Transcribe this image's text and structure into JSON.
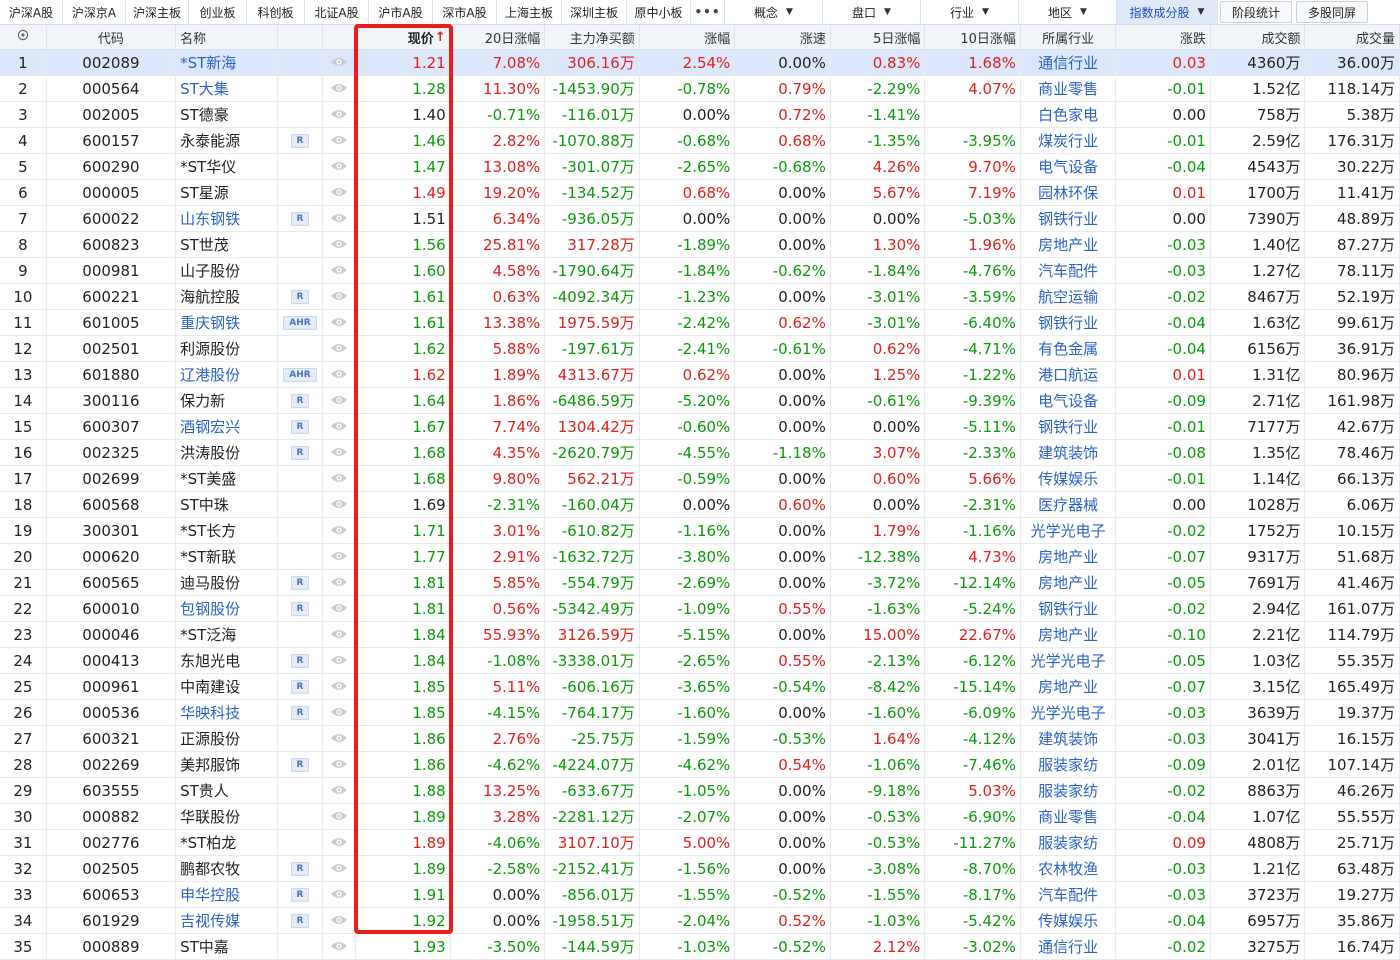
{
  "tabs": [
    {
      "label": "沪深A股",
      "w": 63
    },
    {
      "label": "沪深京A",
      "w": 63
    },
    {
      "label": "沪深主板",
      "w": 63
    },
    {
      "label": "创业板",
      "w": 58
    },
    {
      "label": "科创板",
      "w": 58
    },
    {
      "label": "北证A股",
      "w": 64
    },
    {
      "label": "沪市A股",
      "w": 64
    },
    {
      "label": "深市A股",
      "w": 64
    },
    {
      "label": "上海主板",
      "w": 65
    },
    {
      "label": "深圳主板",
      "w": 65
    },
    {
      "label": "原中小板",
      "w": 64
    }
  ],
  "more_label": "•••",
  "dropdowns": [
    {
      "label": "概念",
      "w": 98
    },
    {
      "label": "盘口",
      "w": 98
    },
    {
      "label": "行业",
      "w": 98
    },
    {
      "label": "地区",
      "w": 98
    },
    {
      "label": "指数成分股",
      "w": 101,
      "active": true
    }
  ],
  "buttons": [
    {
      "label": "阶段统计",
      "w": 72
    },
    {
      "label": "多股同屏",
      "w": 72
    }
  ],
  "columns": [
    {
      "label": "",
      "w": 47,
      "key": "idx"
    },
    {
      "label": "代码",
      "w": 130,
      "key": "code"
    },
    {
      "label": "名称",
      "w": 102,
      "key": "name"
    },
    {
      "label": "",
      "w": 46,
      "key": "badge"
    },
    {
      "label": "",
      "w": 33,
      "key": "watch"
    },
    {
      "label": "现价",
      "w": 95,
      "key": "price"
    },
    {
      "label": "20日涨幅",
      "w": 95,
      "key": "chg20"
    },
    {
      "label": "主力净买额",
      "w": 95,
      "key": "net"
    },
    {
      "label": "涨幅",
      "w": 96,
      "key": "pct"
    },
    {
      "label": "涨速",
      "w": 96,
      "key": "speed"
    },
    {
      "label": "5日涨幅",
      "w": 95,
      "key": "chg5"
    },
    {
      "label": "10日涨幅",
      "w": 96,
      "key": "chg10"
    },
    {
      "label": "所属行业",
      "w": 96,
      "key": "ind"
    },
    {
      "label": "涨跌",
      "w": 95,
      "key": "diff"
    },
    {
      "label": "成交额",
      "w": 95,
      "key": "amt"
    },
    {
      "label": "成交量",
      "w": 95,
      "key": "vol"
    }
  ],
  "sort_indicator": "↑",
  "colors": {
    "up": "#e0201c",
    "down": "#0a9a0a",
    "flat": "#222222",
    "link": "#2a62c9",
    "highlight": "#ee1b1b"
  },
  "rows": [
    {
      "idx": "1",
      "code": "002089",
      "name": "*ST新海",
      "nl": 1,
      "badge": "",
      "price": "1.21",
      "pc": "red",
      "chg20": "7.08%",
      "net": "306.16万",
      "pct": "2.54%",
      "speed": "0.00%",
      "chg5": "0.83%",
      "chg10": "1.68%",
      "ind": "通信行业",
      "diff": "0.03",
      "amt": "4360万",
      "vol": "36.00万"
    },
    {
      "idx": "2",
      "code": "000564",
      "name": "ST大集",
      "nl": 1,
      "badge": "",
      "price": "1.28",
      "pc": "green",
      "chg20": "11.30%",
      "net": "-1453.90万",
      "pct": "-0.78%",
      "speed": "0.79%",
      "chg5": "-2.29%",
      "chg10": "4.07%",
      "ind": "商业零售",
      "diff": "-0.01",
      "amt": "1.52亿",
      "vol": "118.14万"
    },
    {
      "idx": "3",
      "code": "002005",
      "name": "ST德豪",
      "nl": 0,
      "badge": "",
      "price": "1.40",
      "pc": "black",
      "chg20": "-0.71%",
      "net": "-116.01万",
      "pct": "0.00%",
      "speed": "0.72%",
      "chg5": "-1.41%",
      "chg10": "",
      "ind": "白色家电",
      "diff": "0.00",
      "amt": "758万",
      "vol": "5.38万"
    },
    {
      "idx": "4",
      "code": "600157",
      "name": "永泰能源",
      "nl": 0,
      "badge": "R",
      "price": "1.46",
      "pc": "green",
      "chg20": "2.82%",
      "net": "-1070.88万",
      "pct": "-0.68%",
      "speed": "0.68%",
      "chg5": "-1.35%",
      "chg10": "-3.95%",
      "ind": "煤炭行业",
      "diff": "-0.01",
      "amt": "2.59亿",
      "vol": "176.31万"
    },
    {
      "idx": "5",
      "code": "600290",
      "name": "*ST华仪",
      "nl": 0,
      "badge": "",
      "price": "1.47",
      "pc": "green",
      "chg20": "13.08%",
      "net": "-301.07万",
      "pct": "-2.65%",
      "speed": "-0.68%",
      "chg5": "4.26%",
      "chg10": "9.70%",
      "ind": "电气设备",
      "diff": "-0.04",
      "amt": "4543万",
      "vol": "30.22万"
    },
    {
      "idx": "6",
      "code": "000005",
      "name": "ST星源",
      "nl": 0,
      "badge": "",
      "price": "1.49",
      "pc": "red",
      "chg20": "19.20%",
      "net": "-134.52万",
      "pct": "0.68%",
      "speed": "0.00%",
      "chg5": "5.67%",
      "chg10": "7.19%",
      "ind": "园林环保",
      "diff": "0.01",
      "amt": "1700万",
      "vol": "11.41万"
    },
    {
      "idx": "7",
      "code": "600022",
      "name": "山东钢铁",
      "nl": 1,
      "badge": "R",
      "price": "1.51",
      "pc": "black",
      "chg20": "6.34%",
      "net": "-936.05万",
      "pct": "0.00%",
      "speed": "0.00%",
      "chg5": "0.00%",
      "chg10": "-5.03%",
      "ind": "钢铁行业",
      "diff": "0.00",
      "amt": "7390万",
      "vol": "48.89万"
    },
    {
      "idx": "8",
      "code": "600823",
      "name": "ST世茂",
      "nl": 0,
      "badge": "",
      "price": "1.56",
      "pc": "green",
      "chg20": "25.81%",
      "net": "317.28万",
      "pct": "-1.89%",
      "speed": "0.00%",
      "chg5": "1.30%",
      "chg10": "1.96%",
      "ind": "房地产业",
      "diff": "-0.03",
      "amt": "1.40亿",
      "vol": "87.27万"
    },
    {
      "idx": "9",
      "code": "000981",
      "name": "山子股份",
      "nl": 0,
      "badge": "",
      "price": "1.60",
      "pc": "green",
      "chg20": "4.58%",
      "net": "-1790.64万",
      "pct": "-1.84%",
      "speed": "-0.62%",
      "chg5": "-1.84%",
      "chg10": "-4.76%",
      "ind": "汽车配件",
      "diff": "-0.03",
      "amt": "1.27亿",
      "vol": "78.11万"
    },
    {
      "idx": "10",
      "code": "600221",
      "name": "海航控股",
      "nl": 0,
      "badge": "R",
      "price": "1.61",
      "pc": "green",
      "chg20": "0.63%",
      "net": "-4092.34万",
      "pct": "-1.23%",
      "speed": "0.00%",
      "chg5": "-3.01%",
      "chg10": "-3.59%",
      "ind": "航空运输",
      "diff": "-0.02",
      "amt": "8467万",
      "vol": "52.19万"
    },
    {
      "idx": "11",
      "code": "601005",
      "name": "重庆钢铁",
      "nl": 1,
      "badge": "AHR",
      "price": "1.61",
      "pc": "green",
      "chg20": "13.38%",
      "net": "1975.59万",
      "pct": "-2.42%",
      "speed": "0.62%",
      "chg5": "-3.01%",
      "chg10": "-6.40%",
      "ind": "钢铁行业",
      "diff": "-0.04",
      "amt": "1.63亿",
      "vol": "99.61万"
    },
    {
      "idx": "12",
      "code": "002501",
      "name": "利源股份",
      "nl": 0,
      "badge": "",
      "price": "1.62",
      "pc": "green",
      "chg20": "5.88%",
      "net": "-197.61万",
      "pct": "-2.41%",
      "speed": "-0.61%",
      "chg5": "0.62%",
      "chg10": "-4.71%",
      "ind": "有色金属",
      "diff": "-0.04",
      "amt": "6156万",
      "vol": "36.91万"
    },
    {
      "idx": "13",
      "code": "601880",
      "name": "辽港股份",
      "nl": 1,
      "badge": "AHR",
      "price": "1.62",
      "pc": "red",
      "chg20": "1.89%",
      "net": "4313.67万",
      "pct": "0.62%",
      "speed": "0.00%",
      "chg5": "1.25%",
      "chg10": "-1.22%",
      "ind": "港口航运",
      "diff": "0.01",
      "amt": "1.31亿",
      "vol": "80.96万"
    },
    {
      "idx": "14",
      "code": "300116",
      "name": "保力新",
      "nl": 0,
      "badge": "R",
      "price": "1.64",
      "pc": "green",
      "chg20": "1.86%",
      "net": "-6486.59万",
      "pct": "-5.20%",
      "speed": "0.00%",
      "chg5": "-0.61%",
      "chg10": "-9.39%",
      "ind": "电气设备",
      "diff": "-0.09",
      "amt": "2.71亿",
      "vol": "161.98万"
    },
    {
      "idx": "15",
      "code": "600307",
      "name": "酒钢宏兴",
      "nl": 1,
      "badge": "R",
      "price": "1.67",
      "pc": "green",
      "chg20": "7.74%",
      "net": "1304.42万",
      "pct": "-0.60%",
      "speed": "0.00%",
      "chg5": "0.00%",
      "chg10": "-5.11%",
      "ind": "钢铁行业",
      "diff": "-0.01",
      "amt": "7177万",
      "vol": "42.67万"
    },
    {
      "idx": "16",
      "code": "002325",
      "name": "洪涛股份",
      "nl": 0,
      "badge": "R",
      "price": "1.68",
      "pc": "green",
      "chg20": "4.35%",
      "net": "-2620.79万",
      "pct": "-4.55%",
      "speed": "-1.18%",
      "chg5": "3.07%",
      "chg10": "-2.33%",
      "ind": "建筑装饰",
      "diff": "-0.08",
      "amt": "1.35亿",
      "vol": "78.46万"
    },
    {
      "idx": "17",
      "code": "002699",
      "name": "*ST美盛",
      "nl": 0,
      "badge": "",
      "price": "1.68",
      "pc": "green",
      "chg20": "9.80%",
      "net": "562.21万",
      "pct": "-0.59%",
      "speed": "0.00%",
      "chg5": "0.60%",
      "chg10": "5.66%",
      "ind": "传媒娱乐",
      "diff": "-0.01",
      "amt": "1.14亿",
      "vol": "66.13万"
    },
    {
      "idx": "18",
      "code": "600568",
      "name": "ST中珠",
      "nl": 0,
      "badge": "",
      "price": "1.69",
      "pc": "black",
      "chg20": "-2.31%",
      "net": "-160.04万",
      "pct": "0.00%",
      "speed": "0.60%",
      "chg5": "0.00%",
      "chg10": "-2.31%",
      "ind": "医疗器械",
      "diff": "0.00",
      "amt": "1028万",
      "vol": "6.06万"
    },
    {
      "idx": "19",
      "code": "300301",
      "name": "*ST长方",
      "nl": 0,
      "badge": "",
      "price": "1.71",
      "pc": "green",
      "chg20": "3.01%",
      "net": "-610.82万",
      "pct": "-1.16%",
      "speed": "0.00%",
      "chg5": "1.79%",
      "chg10": "-1.16%",
      "ind": "光学光电子",
      "diff": "-0.02",
      "amt": "1752万",
      "vol": "10.15万"
    },
    {
      "idx": "20",
      "code": "000620",
      "name": "*ST新联",
      "nl": 0,
      "badge": "",
      "price": "1.77",
      "pc": "green",
      "chg20": "2.91%",
      "net": "-1632.72万",
      "pct": "-3.80%",
      "speed": "0.00%",
      "chg5": "-12.38%",
      "chg10": "4.73%",
      "ind": "房地产业",
      "diff": "-0.07",
      "amt": "9317万",
      "vol": "51.68万"
    },
    {
      "idx": "21",
      "code": "600565",
      "name": "迪马股份",
      "nl": 0,
      "badge": "R",
      "price": "1.81",
      "pc": "green",
      "chg20": "5.85%",
      "net": "-554.79万",
      "pct": "-2.69%",
      "speed": "0.00%",
      "chg5": "-3.72%",
      "chg10": "-12.14%",
      "ind": "房地产业",
      "diff": "-0.05",
      "amt": "7691万",
      "vol": "41.46万"
    },
    {
      "idx": "22",
      "code": "600010",
      "name": "包钢股份",
      "nl": 1,
      "badge": "R",
      "price": "1.81",
      "pc": "green",
      "chg20": "0.56%",
      "net": "-5342.49万",
      "pct": "-1.09%",
      "speed": "0.55%",
      "chg5": "-1.63%",
      "chg10": "-5.24%",
      "ind": "钢铁行业",
      "diff": "-0.02",
      "amt": "2.94亿",
      "vol": "161.07万"
    },
    {
      "idx": "23",
      "code": "000046",
      "name": "*ST泛海",
      "nl": 0,
      "badge": "",
      "price": "1.84",
      "pc": "green",
      "chg20": "55.93%",
      "net": "3126.59万",
      "pct": "-5.15%",
      "speed": "0.00%",
      "chg5": "15.00%",
      "chg10": "22.67%",
      "ind": "房地产业",
      "diff": "-0.10",
      "amt": "2.21亿",
      "vol": "114.79万"
    },
    {
      "idx": "24",
      "code": "000413",
      "name": "东旭光电",
      "nl": 0,
      "badge": "R",
      "price": "1.84",
      "pc": "green",
      "chg20": "-1.08%",
      "net": "-3338.01万",
      "pct": "-2.65%",
      "speed": "0.55%",
      "chg5": "-2.13%",
      "chg10": "-6.12%",
      "ind": "光学光电子",
      "diff": "-0.05",
      "amt": "1.03亿",
      "vol": "55.35万"
    },
    {
      "idx": "25",
      "code": "000961",
      "name": "中南建设",
      "nl": 0,
      "badge": "R",
      "price": "1.85",
      "pc": "green",
      "chg20": "5.11%",
      "net": "-606.16万",
      "pct": "-3.65%",
      "speed": "-0.54%",
      "chg5": "-8.42%",
      "chg10": "-15.14%",
      "ind": "房地产业",
      "diff": "-0.07",
      "amt": "3.15亿",
      "vol": "165.49万"
    },
    {
      "idx": "26",
      "code": "000536",
      "name": "华映科技",
      "nl": 1,
      "badge": "R",
      "price": "1.85",
      "pc": "green",
      "chg20": "-4.15%",
      "net": "-764.17万",
      "pct": "-1.60%",
      "speed": "0.00%",
      "chg5": "-1.60%",
      "chg10": "-6.09%",
      "ind": "光学光电子",
      "diff": "-0.03",
      "amt": "3639万",
      "vol": "19.37万"
    },
    {
      "idx": "27",
      "code": "600321",
      "name": "正源股份",
      "nl": 0,
      "badge": "",
      "price": "1.86",
      "pc": "green",
      "chg20": "2.76%",
      "net": "-25.75万",
      "pct": "-1.59%",
      "speed": "-0.53%",
      "chg5": "1.64%",
      "chg10": "-4.12%",
      "ind": "建筑装饰",
      "diff": "-0.03",
      "amt": "3041万",
      "vol": "16.15万"
    },
    {
      "idx": "28",
      "code": "002269",
      "name": "美邦服饰",
      "nl": 0,
      "badge": "R",
      "price": "1.86",
      "pc": "green",
      "chg20": "-4.62%",
      "net": "-4224.07万",
      "pct": "-4.62%",
      "speed": "0.54%",
      "chg5": "-1.06%",
      "chg10": "-7.46%",
      "ind": "服装家纺",
      "diff": "-0.09",
      "amt": "2.01亿",
      "vol": "107.14万"
    },
    {
      "idx": "29",
      "code": "603555",
      "name": "ST贵人",
      "nl": 0,
      "badge": "",
      "price": "1.88",
      "pc": "green",
      "chg20": "13.25%",
      "net": "-633.67万",
      "pct": "-1.05%",
      "speed": "0.00%",
      "chg5": "-9.18%",
      "chg10": "5.03%",
      "ind": "服装家纺",
      "diff": "-0.02",
      "amt": "8863万",
      "vol": "46.26万"
    },
    {
      "idx": "30",
      "code": "000882",
      "name": "华联股份",
      "nl": 0,
      "badge": "",
      "price": "1.89",
      "pc": "green",
      "chg20": "3.28%",
      "net": "-2281.12万",
      "pct": "-2.07%",
      "speed": "0.00%",
      "chg5": "-0.53%",
      "chg10": "-6.90%",
      "ind": "商业零售",
      "diff": "-0.04",
      "amt": "1.07亿",
      "vol": "55.55万"
    },
    {
      "idx": "31",
      "code": "002776",
      "name": "*ST柏龙",
      "nl": 0,
      "badge": "",
      "price": "1.89",
      "pc": "red",
      "chg20": "-4.06%",
      "net": "3107.10万",
      "pct": "5.00%",
      "speed": "0.00%",
      "chg5": "-0.53%",
      "chg10": "-11.27%",
      "ind": "服装家纺",
      "diff": "0.09",
      "amt": "4808万",
      "vol": "25.71万"
    },
    {
      "idx": "32",
      "code": "002505",
      "name": "鹏都农牧",
      "nl": 0,
      "badge": "R",
      "price": "1.89",
      "pc": "green",
      "chg20": "-2.58%",
      "net": "-2152.41万",
      "pct": "-1.56%",
      "speed": "0.00%",
      "chg5": "-3.08%",
      "chg10": "-8.70%",
      "ind": "农林牧渔",
      "diff": "-0.03",
      "amt": "1.21亿",
      "vol": "63.48万"
    },
    {
      "idx": "33",
      "code": "600653",
      "name": "申华控股",
      "nl": 1,
      "badge": "R",
      "price": "1.91",
      "pc": "green",
      "chg20": "0.00%",
      "net": "-856.01万",
      "pct": "-1.55%",
      "speed": "-0.52%",
      "chg5": "-1.55%",
      "chg10": "-8.17%",
      "ind": "汽车配件",
      "diff": "-0.03",
      "amt": "3723万",
      "vol": "19.27万"
    },
    {
      "idx": "34",
      "code": "601929",
      "name": "吉视传媒",
      "nl": 1,
      "badge": "R",
      "price": "1.92",
      "pc": "green",
      "chg20": "0.00%",
      "net": "-1958.51万",
      "pct": "-2.04%",
      "speed": "0.52%",
      "chg5": "-1.03%",
      "chg10": "-5.42%",
      "ind": "传媒娱乐",
      "diff": "-0.04",
      "amt": "6957万",
      "vol": "35.86万"
    },
    {
      "idx": "35",
      "code": "000889",
      "name": "ST中嘉",
      "nl": 0,
      "badge": "",
      "price": "1.93",
      "pc": "green",
      "chg20": "-3.50%",
      "net": "-144.59万",
      "pct": "-1.03%",
      "speed": "-0.52%",
      "chg5": "2.12%",
      "chg10": "-3.02%",
      "ind": "通信行业",
      "diff": "-0.02",
      "amt": "3275万",
      "vol": "16.74万"
    }
  ]
}
